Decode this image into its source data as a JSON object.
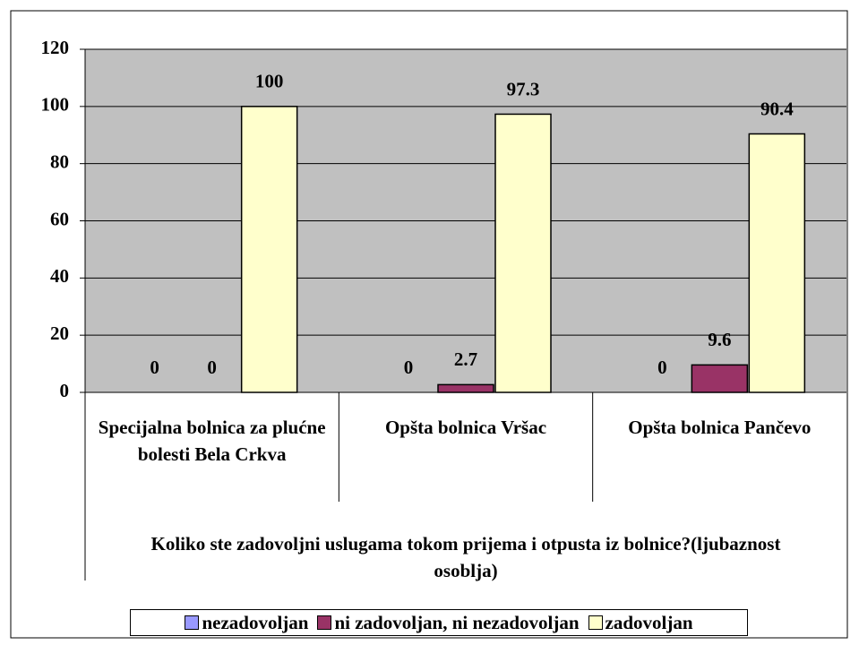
{
  "chart_data": {
    "type": "bar",
    "categories": [
      "Specijalna bolnica za plućne bolesti Bela Crkva",
      "Opšta bolnica Vršac",
      "Opšta bolnica Pančevo"
    ],
    "x_label": "Koliko ste zadovoljni uslugama tokom prijema i otpusta iz bolnice?(ljubaznost osoblja)",
    "series": [
      {
        "name": "nezadovoljan",
        "color": "#9999ff",
        "values": [
          0,
          0,
          0
        ]
      },
      {
        "name": "ni zadovoljan, ni nezadovoljan",
        "color": "#993366",
        "values": [
          0,
          2.7,
          9.6
        ]
      },
      {
        "name": "zadovoljan",
        "color": "#ffffcc",
        "values": [
          100,
          97.3,
          90.4
        ]
      }
    ],
    "ylim": [
      0,
      120
    ],
    "yticks": [
      0,
      20,
      40,
      60,
      80,
      100,
      120
    ],
    "grid": true,
    "legend": "bottom"
  }
}
